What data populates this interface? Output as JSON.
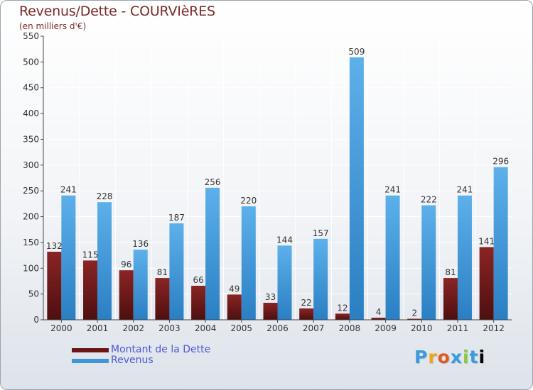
{
  "header": {
    "title": "Revenus/Dette - COURVIèRES",
    "subtitle": "(en milliers d'€)"
  },
  "logo": {
    "text": "Proxiti"
  },
  "colors": {
    "dette": "#7a1f1f",
    "revenus": "#3d97d9",
    "axis": "#444444",
    "grid": "#ffffff"
  },
  "chart_data": {
    "type": "bar",
    "title": "Revenus/Dette - COURVIèRES",
    "ylabel": "(en milliers d'€)",
    "xlabel": "",
    "ylim": [
      0,
      550
    ],
    "yticks": [
      0,
      50,
      100,
      150,
      200,
      250,
      300,
      350,
      400,
      450,
      500,
      550
    ],
    "grid": true,
    "legend": "bottom-left",
    "categories": [
      "2000",
      "2001",
      "2002",
      "2003",
      "2004",
      "2005",
      "2006",
      "2007",
      "2008",
      "2009",
      "2010",
      "2011",
      "2012"
    ],
    "series": [
      {
        "name": "Montant de la Dette",
        "color": "#7a1f1f",
        "values": [
          132,
          115,
          96,
          81,
          66,
          49,
          33,
          22,
          12,
          4,
          2,
          81,
          141
        ]
      },
      {
        "name": "Revenus",
        "color": "#3d97d9",
        "values": [
          241,
          228,
          136,
          187,
          256,
          220,
          144,
          157,
          509,
          241,
          222,
          241,
          296
        ]
      }
    ]
  }
}
